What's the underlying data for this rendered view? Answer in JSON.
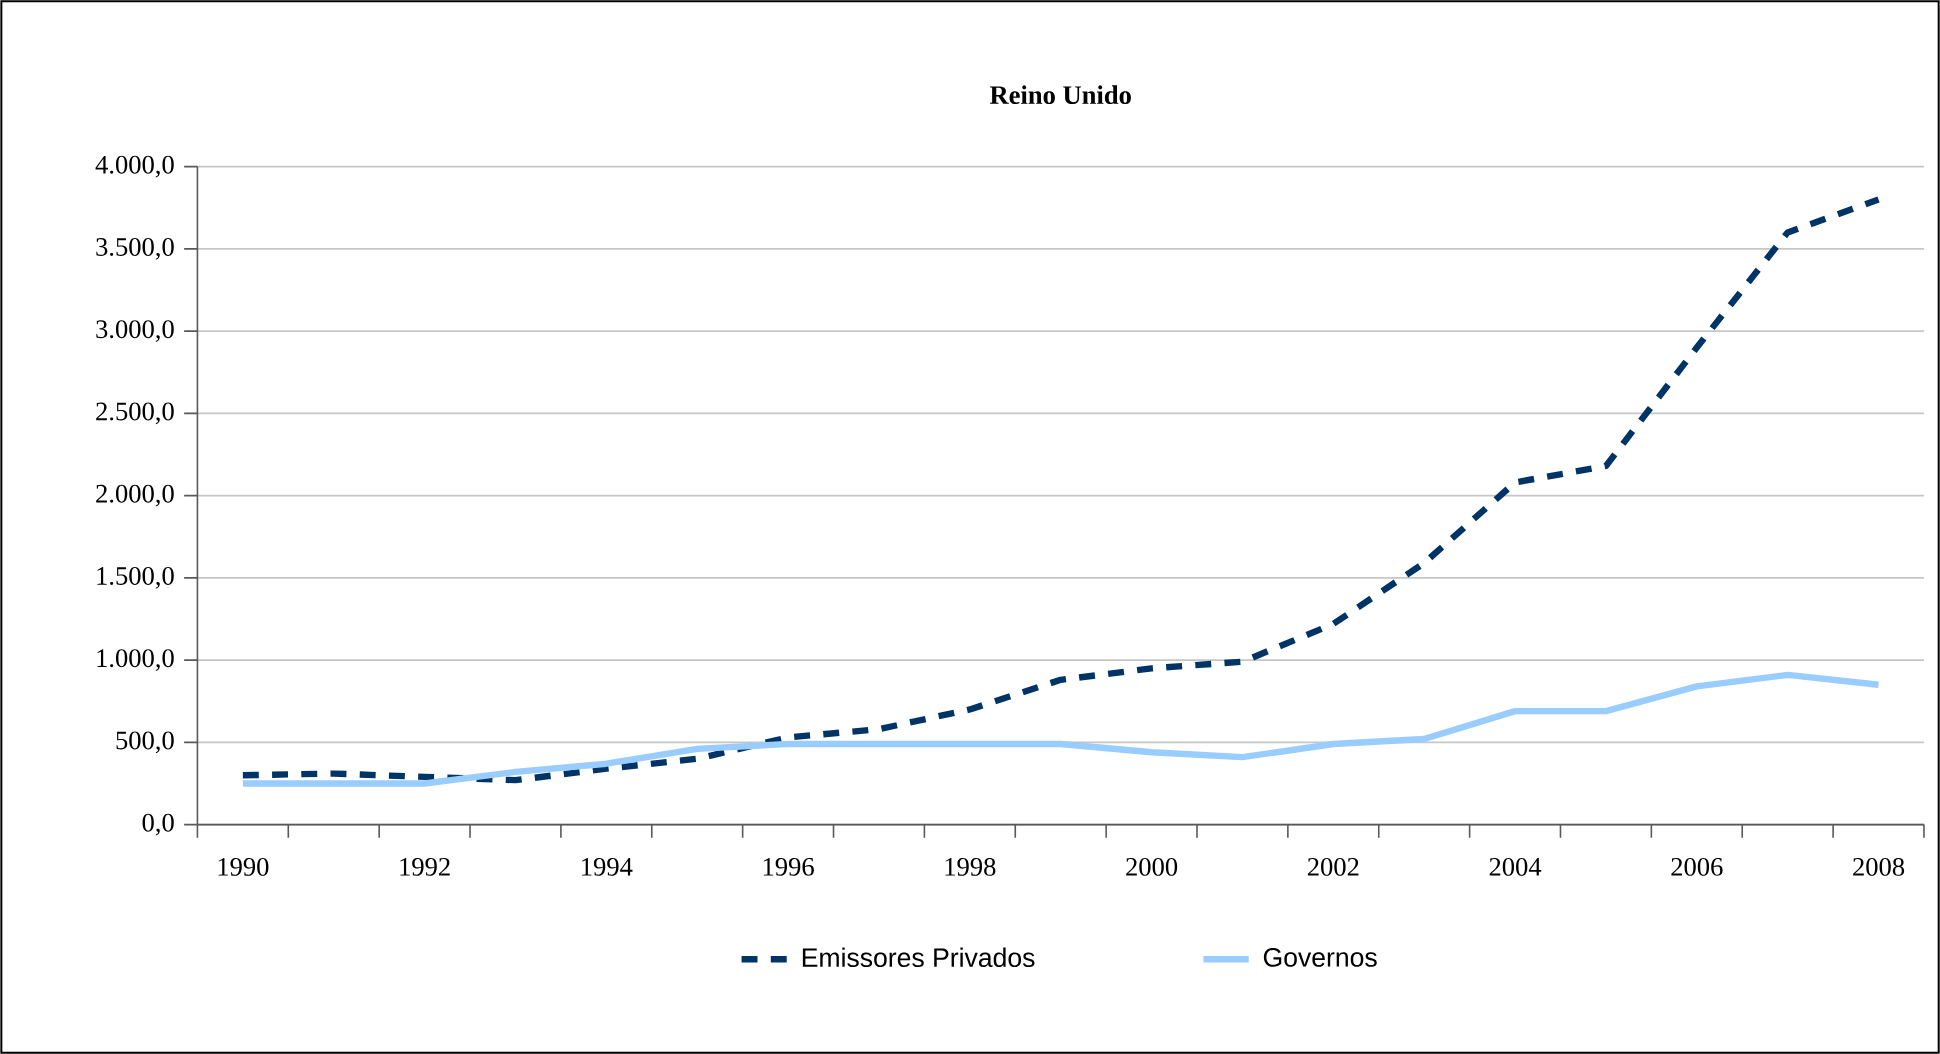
{
  "chart_data": {
    "type": "line",
    "title": "Reino Unido",
    "categories": [
      "1990",
      null,
      "1992",
      null,
      "1994",
      null,
      "1996",
      null,
      "1998",
      null,
      "2000",
      null,
      "2002",
      null,
      "2004",
      null,
      "2006",
      null,
      "2008"
    ],
    "series": [
      {
        "name": "Emissores Privados",
        "color": "#003366",
        "line_style": "dashed",
        "values": [
          300,
          310,
          290,
          270,
          340,
          400,
          530,
          580,
          700,
          880,
          950,
          990,
          1220,
          1590,
          2080,
          2180,
          2900,
          3600,
          3800
        ]
      },
      {
        "name": "Governos",
        "color": "#99ccff",
        "line_style": "solid",
        "values": [
          250,
          250,
          250,
          320,
          370,
          460,
          490,
          490,
          490,
          490,
          440,
          410,
          490,
          520,
          690,
          690,
          840,
          910,
          850
        ]
      }
    ],
    "ylim": [
      0,
      4000
    ],
    "yticks": [
      {
        "value": 0,
        "label": "0,0"
      },
      {
        "value": 500,
        "label": "500,0"
      },
      {
        "value": 1000,
        "label": "1.000,0"
      },
      {
        "value": 1500,
        "label": "1.500,0"
      },
      {
        "value": 2000,
        "label": "2.000,0"
      },
      {
        "value": 2500,
        "label": "2.500,0"
      },
      {
        "value": 3000,
        "label": "3.000,0"
      },
      {
        "value": 3500,
        "label": "3.500,0"
      },
      {
        "value": 4000,
        "label": "4.000,0"
      }
    ],
    "grid": "y",
    "legend": "bottom",
    "marker": "none"
  }
}
